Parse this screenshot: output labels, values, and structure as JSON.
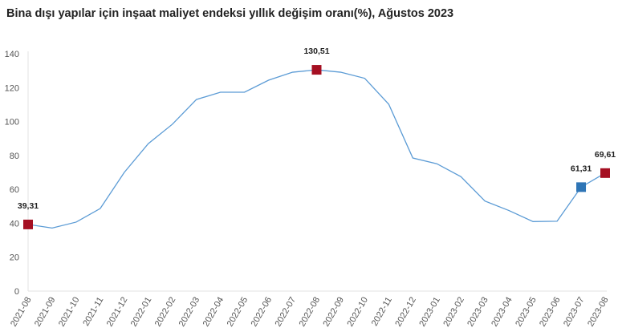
{
  "chart_data": {
    "type": "line",
    "title": "Bina dışı yapılar için inşaat maliyet endeksi yıllık değişim oranı(%), Ağustos 2023",
    "xlabel": "",
    "ylabel": "",
    "ylim": [
      0,
      140
    ],
    "yticks": [
      0,
      20,
      40,
      60,
      80,
      100,
      120,
      140
    ],
    "grid": false,
    "categories": [
      "2021-08",
      "2021-09",
      "2021-10",
      "2021-11",
      "2021-12",
      "2022-01",
      "2022-02",
      "2022-03",
      "2022-04",
      "2022-05",
      "2022-06",
      "2022-07",
      "2022-08",
      "2022-09",
      "2022-10",
      "2022-11",
      "2022-12",
      "2023-01",
      "2023-02",
      "2023-03",
      "2023-04",
      "2023-05",
      "2023-06",
      "2023-07",
      "2023-08"
    ],
    "series": [
      {
        "name": "Yıllık değişim oranı",
        "color": "#5b9bd5",
        "values": [
          39.31,
          37.2,
          40.7,
          48.7,
          70.0,
          87.0,
          98.4,
          113.0,
          117.3,
          117.3,
          124.4,
          129.1,
          130.51,
          129.1,
          125.5,
          110.2,
          78.5,
          75.1,
          67.5,
          53.1,
          47.5,
          41.0,
          41.2,
          61.31,
          69.61
        ]
      }
    ],
    "highlighted_points": [
      {
        "category": "2021-08",
        "label": "39,31",
        "color": "#a50f22"
      },
      {
        "category": "2022-08",
        "label": "130,51",
        "color": "#a50f22"
      },
      {
        "category": "2023-07",
        "label": "61,31",
        "color": "#2e75b6"
      },
      {
        "category": "2023-08",
        "label": "69,61",
        "color": "#a50f22"
      }
    ]
  }
}
